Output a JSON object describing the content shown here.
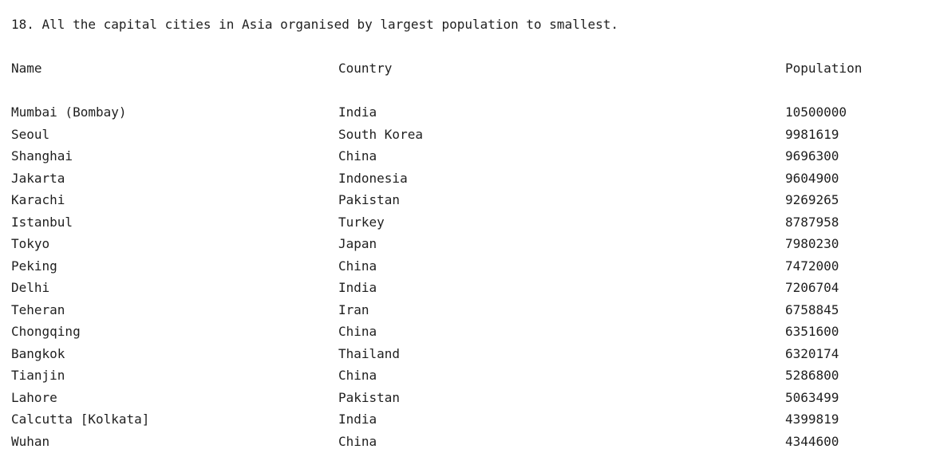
{
  "title": "18. All the capital cities in Asia organised by largest population to smallest.",
  "headers": {
    "name": "Name",
    "country": "Country",
    "population": "Population"
  },
  "rows": [
    {
      "name": "Mumbai (Bombay)",
      "country": "India",
      "population": "10500000"
    },
    {
      "name": "Seoul",
      "country": "South Korea",
      "population": "9981619"
    },
    {
      "name": "Shanghai",
      "country": "China",
      "population": "9696300"
    },
    {
      "name": "Jakarta",
      "country": "Indonesia",
      "population": "9604900"
    },
    {
      "name": "Karachi",
      "country": "Pakistan",
      "population": "9269265"
    },
    {
      "name": "Istanbul",
      "country": "Turkey",
      "population": "8787958"
    },
    {
      "name": "Tokyo",
      "country": "Japan",
      "population": "7980230"
    },
    {
      "name": "Peking",
      "country": "China",
      "population": "7472000"
    },
    {
      "name": "Delhi",
      "country": "India",
      "population": "7206704"
    },
    {
      "name": "Teheran",
      "country": "Iran",
      "population": "6758845"
    },
    {
      "name": "Chongqing",
      "country": "China",
      "population": "6351600"
    },
    {
      "name": "Bangkok",
      "country": "Thailand",
      "population": "6320174"
    },
    {
      "name": "Tianjin",
      "country": "China",
      "population": "5286800"
    },
    {
      "name": "Lahore",
      "country": "Pakistan",
      "population": "5063499"
    },
    {
      "name": "Calcutta [Kolkata]",
      "country": "India",
      "population": "4399819"
    },
    {
      "name": "Wuhan",
      "country": "China",
      "population": "4344600"
    }
  ]
}
